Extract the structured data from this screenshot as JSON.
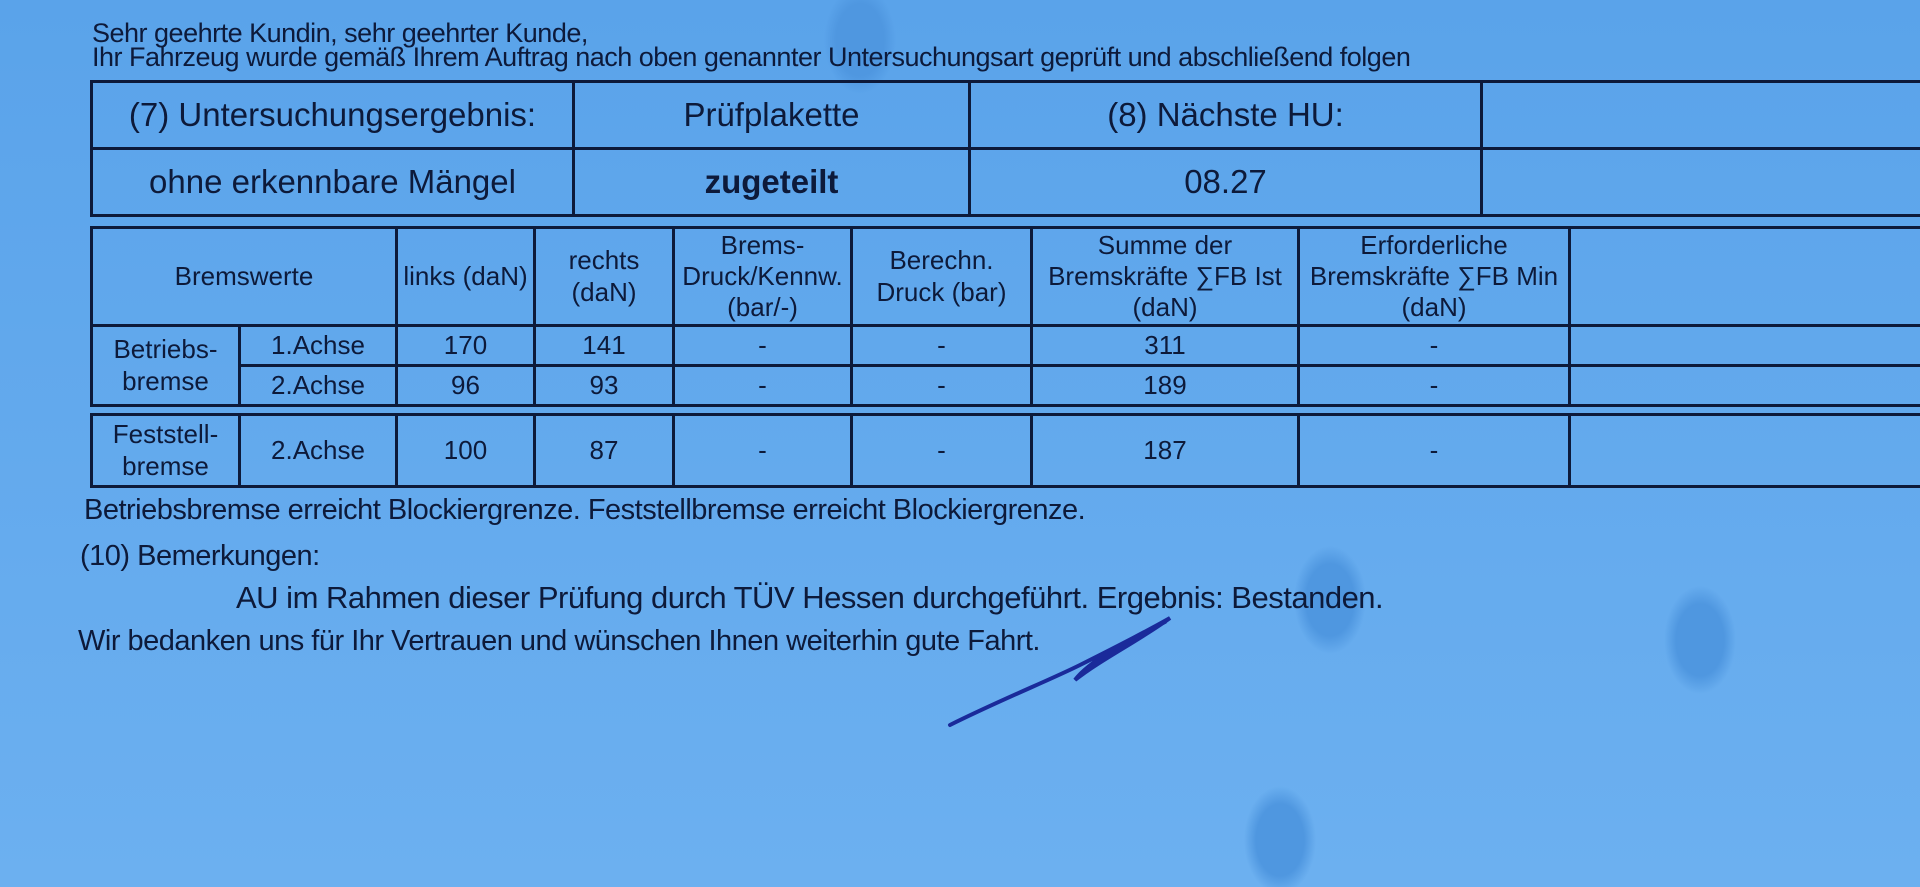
{
  "greeting": "Sehr geehrte Kundin, sehr geehrter Kunde,",
  "intro": "Ihr Fahrzeug wurde gemäß Ihrem Auftrag nach oben genannter Untersuchungsart geprüft und abschließend folgen",
  "result_table": {
    "headers": [
      "(7) Untersuchungsergebnis:",
      "Prüfplakette",
      "(8) Nächste HU:"
    ],
    "values": [
      "ohne erkennbare Mängel",
      "zugeteilt",
      "08.27"
    ]
  },
  "brake_table": {
    "headers": {
      "bremswerte": "Bremswerte",
      "links": "links (daN)",
      "rechts": "rechts (daN)",
      "druck": "Brems- Druck/Kennw. (bar/-)",
      "berechn": "Berechn. Druck (bar)",
      "summe": "Summe der Bremskräfte ∑FB Ist (daN)",
      "erforderlich": "Erforderliche Bremskräfte ∑FB Min (daN)"
    },
    "groups": [
      {
        "label": "Betriebs- bremse",
        "rows": [
          {
            "axle": "1.Achse",
            "links": "170",
            "rechts": "141",
            "druck": "-",
            "berechn": "-",
            "summe": "311",
            "min": "-"
          },
          {
            "axle": "2.Achse",
            "links": "96",
            "rechts": "93",
            "druck": "-",
            "berechn": "-",
            "summe": "189",
            "min": "-"
          }
        ]
      },
      {
        "label": "Feststell- bremse",
        "rows": [
          {
            "axle": "2.Achse",
            "links": "100",
            "rechts": "87",
            "druck": "-",
            "berechn": "-",
            "summe": "187",
            "min": "-"
          }
        ]
      }
    ]
  },
  "blocking_note": "Betriebsbremse erreicht Blockiergrenze. Feststellbremse erreicht Blockiergrenze.",
  "remarks_label": "(10) Bemerkungen:",
  "remarks_text": "AU im Rahmen dieser Prüfung durch TÜV Hessen durchgeführt. Ergebnis: Bestanden.",
  "closing": "Wir bedanken uns für Ihr Vertrauen und wünschen Ihnen weiterhin gute Fahrt.",
  "colors": {
    "paper": "#62a8ec",
    "ink": "#0d1a3a",
    "signature": "#1a2a9a"
  }
}
